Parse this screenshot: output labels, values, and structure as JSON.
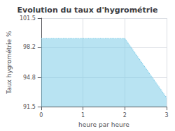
{
  "chart_data": {
    "type": "area",
    "title": "Evolution du taux d'hygrométrie",
    "xlabel": "heure par heure",
    "ylabel": "Taux hygrométrie %",
    "x": [
      0,
      2,
      3
    ],
    "values": [
      99.2,
      99.2,
      92.5
    ],
    "xlim": [
      0,
      3
    ],
    "ylim": [
      91.5,
      101.5
    ],
    "xticks": [
      0,
      1,
      2,
      3
    ],
    "yticks": [
      91.5,
      94.8,
      98.2,
      101.5
    ],
    "grid": true,
    "color": "#7dcce8",
    "line_style": "dotted"
  }
}
